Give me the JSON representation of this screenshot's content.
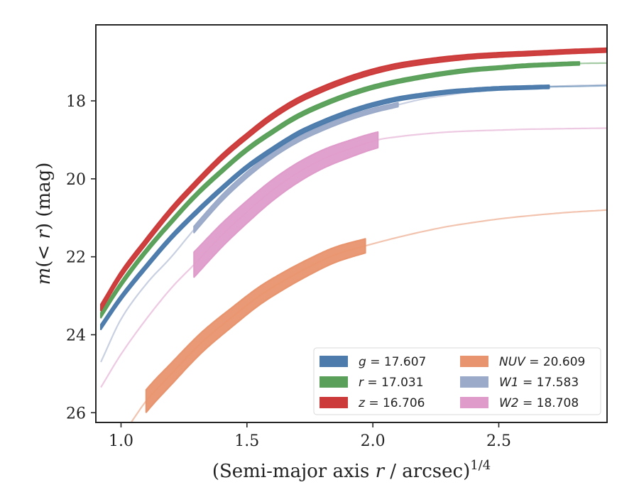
{
  "chart_data": {
    "type": "line",
    "title": "",
    "xlabel": "(Semi-major axis r / arcsec)",
    "xlabel_parts": {
      "open": "(Semi-major axis ",
      "var": "r",
      "rest": " / arcsec)",
      "exponent": "1/4"
    },
    "ylabel": "m(< r) (mag)",
    "ylabel_parts": {
      "var": "m",
      "middle": "(< ",
      "var2": "r",
      "rest": ") (mag)"
    },
    "xlim": [
      0.9,
      2.93
    ],
    "ylim": [
      26.25,
      16.05
    ],
    "y_inverted": true,
    "grid": false,
    "legend_position": "lower-right",
    "xticks": [
      1.0,
      1.5,
      2.0,
      2.5
    ],
    "xtick_labels": [
      "1.0",
      "1.5",
      "2.0",
      "2.5"
    ],
    "yticks": [
      18,
      20,
      22,
      24,
      26
    ],
    "ytick_labels": [
      "18",
      "20",
      "22",
      "24",
      "26"
    ],
    "series": [
      {
        "name": "g",
        "legend_var": "g",
        "legend_value": "= 17.607",
        "color": "#4c7bac",
        "band_halfwidth": 0.04,
        "solid_until": 2.7,
        "x": [
          0.92,
          1.0,
          1.1,
          1.2,
          1.3,
          1.4,
          1.5,
          1.6,
          1.7,
          1.8,
          1.9,
          2.0,
          2.1,
          2.2,
          2.3,
          2.4,
          2.5,
          2.6,
          2.7,
          2.8,
          2.93
        ],
        "y": [
          23.8,
          23.05,
          22.25,
          21.5,
          20.85,
          20.25,
          19.7,
          19.25,
          18.85,
          18.55,
          18.3,
          18.1,
          17.95,
          17.85,
          17.77,
          17.72,
          17.68,
          17.66,
          17.64,
          17.63,
          17.61
        ]
      },
      {
        "name": "r",
        "legend_var": "r",
        "legend_value": "= 17.031",
        "color": "#5aa05a",
        "band_halfwidth": 0.04,
        "solid_until": 2.82,
        "x": [
          0.92,
          1.0,
          1.1,
          1.2,
          1.3,
          1.4,
          1.5,
          1.6,
          1.7,
          1.8,
          1.9,
          2.0,
          2.1,
          2.2,
          2.3,
          2.4,
          2.5,
          2.6,
          2.7,
          2.82,
          2.93
        ],
        "y": [
          23.5,
          22.7,
          21.85,
          21.1,
          20.4,
          19.8,
          19.25,
          18.8,
          18.4,
          18.1,
          17.85,
          17.65,
          17.5,
          17.38,
          17.28,
          17.2,
          17.15,
          17.1,
          17.07,
          17.04,
          17.03
        ]
      },
      {
        "name": "z",
        "legend_var": "z",
        "legend_value": "= 16.706",
        "color": "#cc3a3a",
        "band_halfwidth": 0.05,
        "solid_until": 2.93,
        "x": [
          0.92,
          1.0,
          1.1,
          1.2,
          1.3,
          1.4,
          1.5,
          1.6,
          1.7,
          1.8,
          1.9,
          2.0,
          2.1,
          2.2,
          2.3,
          2.4,
          2.5,
          2.6,
          2.7,
          2.8,
          2.93
        ],
        "y": [
          23.3,
          22.45,
          21.6,
          20.8,
          20.1,
          19.45,
          18.9,
          18.4,
          18.0,
          17.7,
          17.45,
          17.25,
          17.1,
          17.0,
          16.92,
          16.86,
          16.82,
          16.79,
          16.76,
          16.73,
          16.7
        ]
      },
      {
        "name": "NUV",
        "legend_var": "NUV",
        "legend_value": "= 20.609",
        "color": "#e8946e",
        "band_halfwidth": 0.18,
        "solid_from": 1.1,
        "solid_until": 1.97,
        "x": [
          1.04,
          1.1,
          1.2,
          1.32,
          1.45,
          1.55,
          1.65,
          1.75,
          1.85,
          1.97,
          2.1,
          2.2,
          2.3,
          2.4,
          2.5,
          2.6,
          2.7,
          2.8,
          2.93
        ],
        "y": [
          26.25,
          25.7,
          25.0,
          24.2,
          23.5,
          23.0,
          22.6,
          22.25,
          21.95,
          21.72,
          21.5,
          21.35,
          21.22,
          21.12,
          21.03,
          20.96,
          20.9,
          20.85,
          20.8
        ]
      },
      {
        "name": "W1",
        "legend_var": "W1",
        "legend_value": "= 17.583",
        "color": "#9aaac8",
        "band_halfwidth": 0.05,
        "solid_from": 1.29,
        "solid_until": 2.1,
        "x": [
          0.92,
          1.0,
          1.1,
          1.2,
          1.29,
          1.4,
          1.5,
          1.6,
          1.7,
          1.8,
          1.9,
          2.0,
          2.1,
          2.2,
          2.3,
          2.4,
          2.5,
          2.6,
          2.7,
          2.8,
          2.93
        ],
        "y": [
          24.7,
          23.6,
          22.7,
          22.0,
          21.3,
          20.5,
          19.9,
          19.4,
          19.0,
          18.7,
          18.45,
          18.25,
          18.1,
          17.95,
          17.85,
          17.76,
          17.7,
          17.66,
          17.63,
          17.61,
          17.59
        ]
      },
      {
        "name": "W2",
        "legend_var": "W2",
        "legend_value": "= 18.708",
        "color": "#df9ccb",
        "band_halfwidth": 0.2,
        "solid_from": 1.29,
        "solid_until": 2.02,
        "x": [
          0.92,
          1.0,
          1.1,
          1.2,
          1.29,
          1.4,
          1.5,
          1.6,
          1.7,
          1.8,
          1.9,
          2.02,
          2.1,
          2.2,
          2.3,
          2.4,
          2.5,
          2.6,
          2.7,
          2.8,
          2.93
        ],
        "y": [
          25.35,
          24.5,
          23.6,
          22.8,
          22.2,
          21.45,
          20.85,
          20.3,
          19.85,
          19.5,
          19.25,
          19.0,
          18.92,
          18.85,
          18.8,
          18.77,
          18.75,
          18.73,
          18.72,
          18.71,
          18.7
        ]
      }
    ],
    "legend_order": [
      [
        "g",
        "NUV"
      ],
      [
        "r",
        "W1"
      ],
      [
        "z",
        "W2"
      ]
    ]
  }
}
